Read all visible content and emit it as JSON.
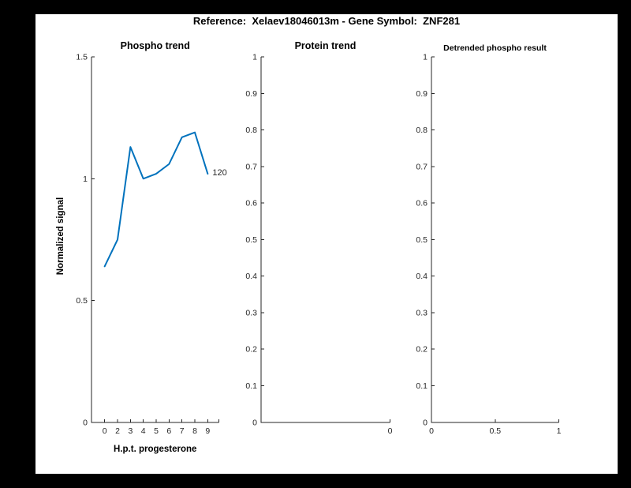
{
  "figure_title": "Reference:  Xelaev18046013m - Gene Symbol:  ZNF281",
  "colors": {
    "line_blue": "#0072BD",
    "axis": "#262626",
    "text": "#000000",
    "figure_background": "#ffffff",
    "frame_background": "#000000"
  },
  "chart_data": [
    {
      "type": "line",
      "title": "Phospho trend",
      "xlabel": "H.p.t. progesterone",
      "ylabel": "Normalized signal",
      "categories": [
        "0",
        "2",
        "3",
        "4",
        "5",
        "6",
        "7",
        "8",
        "9"
      ],
      "values": [
        0.64,
        0.75,
        1.13,
        1.0,
        1.02,
        1.06,
        1.17,
        1.19,
        1.02
      ],
      "end_label": "120",
      "ylim": [
        0,
        1.5
      ],
      "yticks": [
        "0",
        "0.5",
        "1",
        "1.5"
      ],
      "has_unlabeled_right_edge_tick": true,
      "line_color": "#0072BD",
      "grid": false,
      "legend": null
    },
    {
      "type": "line",
      "title": "Protein trend",
      "xlabel": "",
      "ylabel": "",
      "categories": [],
      "values": [],
      "ylim": [
        0,
        1
      ],
      "yticks": [
        "0",
        "0.1",
        "0.2",
        "0.3",
        "0.4",
        "0.5",
        "0.6",
        "0.7",
        "0.8",
        "0.9",
        "1"
      ],
      "xticks": [
        {
          "frac": 1,
          "label": "0"
        }
      ],
      "grid": false,
      "legend": null
    },
    {
      "type": "line",
      "title": "Detrended phospho result",
      "xlabel": "",
      "ylabel": "",
      "categories": [],
      "values": [],
      "ylim": [
        0,
        1
      ],
      "yticks": [
        "0",
        "0.1",
        "0.2",
        "0.3",
        "0.4",
        "0.5",
        "0.6",
        "0.7",
        "0.8",
        "0.9",
        "1"
      ],
      "xticks": [
        {
          "frac": 0,
          "label": "0"
        },
        {
          "frac": 0.5,
          "label": "0.5"
        },
        {
          "frac": 1,
          "label": "1"
        }
      ],
      "grid": false,
      "legend": null
    }
  ]
}
